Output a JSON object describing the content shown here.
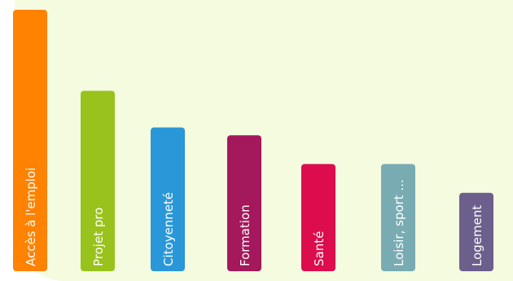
{
  "chart_data": {
    "type": "bar",
    "title": "",
    "xlabel": "",
    "ylabel": "",
    "ylim": [
      0,
      100
    ],
    "grid": false,
    "background_color": "#f4fbdf",
    "label_color": "#ffffff",
    "categories": [
      "Accès à l'emploi",
      "Projet pro",
      "Citoyenneté",
      "Formation",
      "Santé",
      "Loisir, sport ...",
      "Logement"
    ],
    "values": [
      100,
      69,
      55,
      52,
      41,
      41,
      30
    ],
    "colors": [
      "#ff8200",
      "#99c21c",
      "#2997d8",
      "#a3195b",
      "#dc0c4d",
      "#79abb3",
      "#6c5f8c"
    ]
  }
}
